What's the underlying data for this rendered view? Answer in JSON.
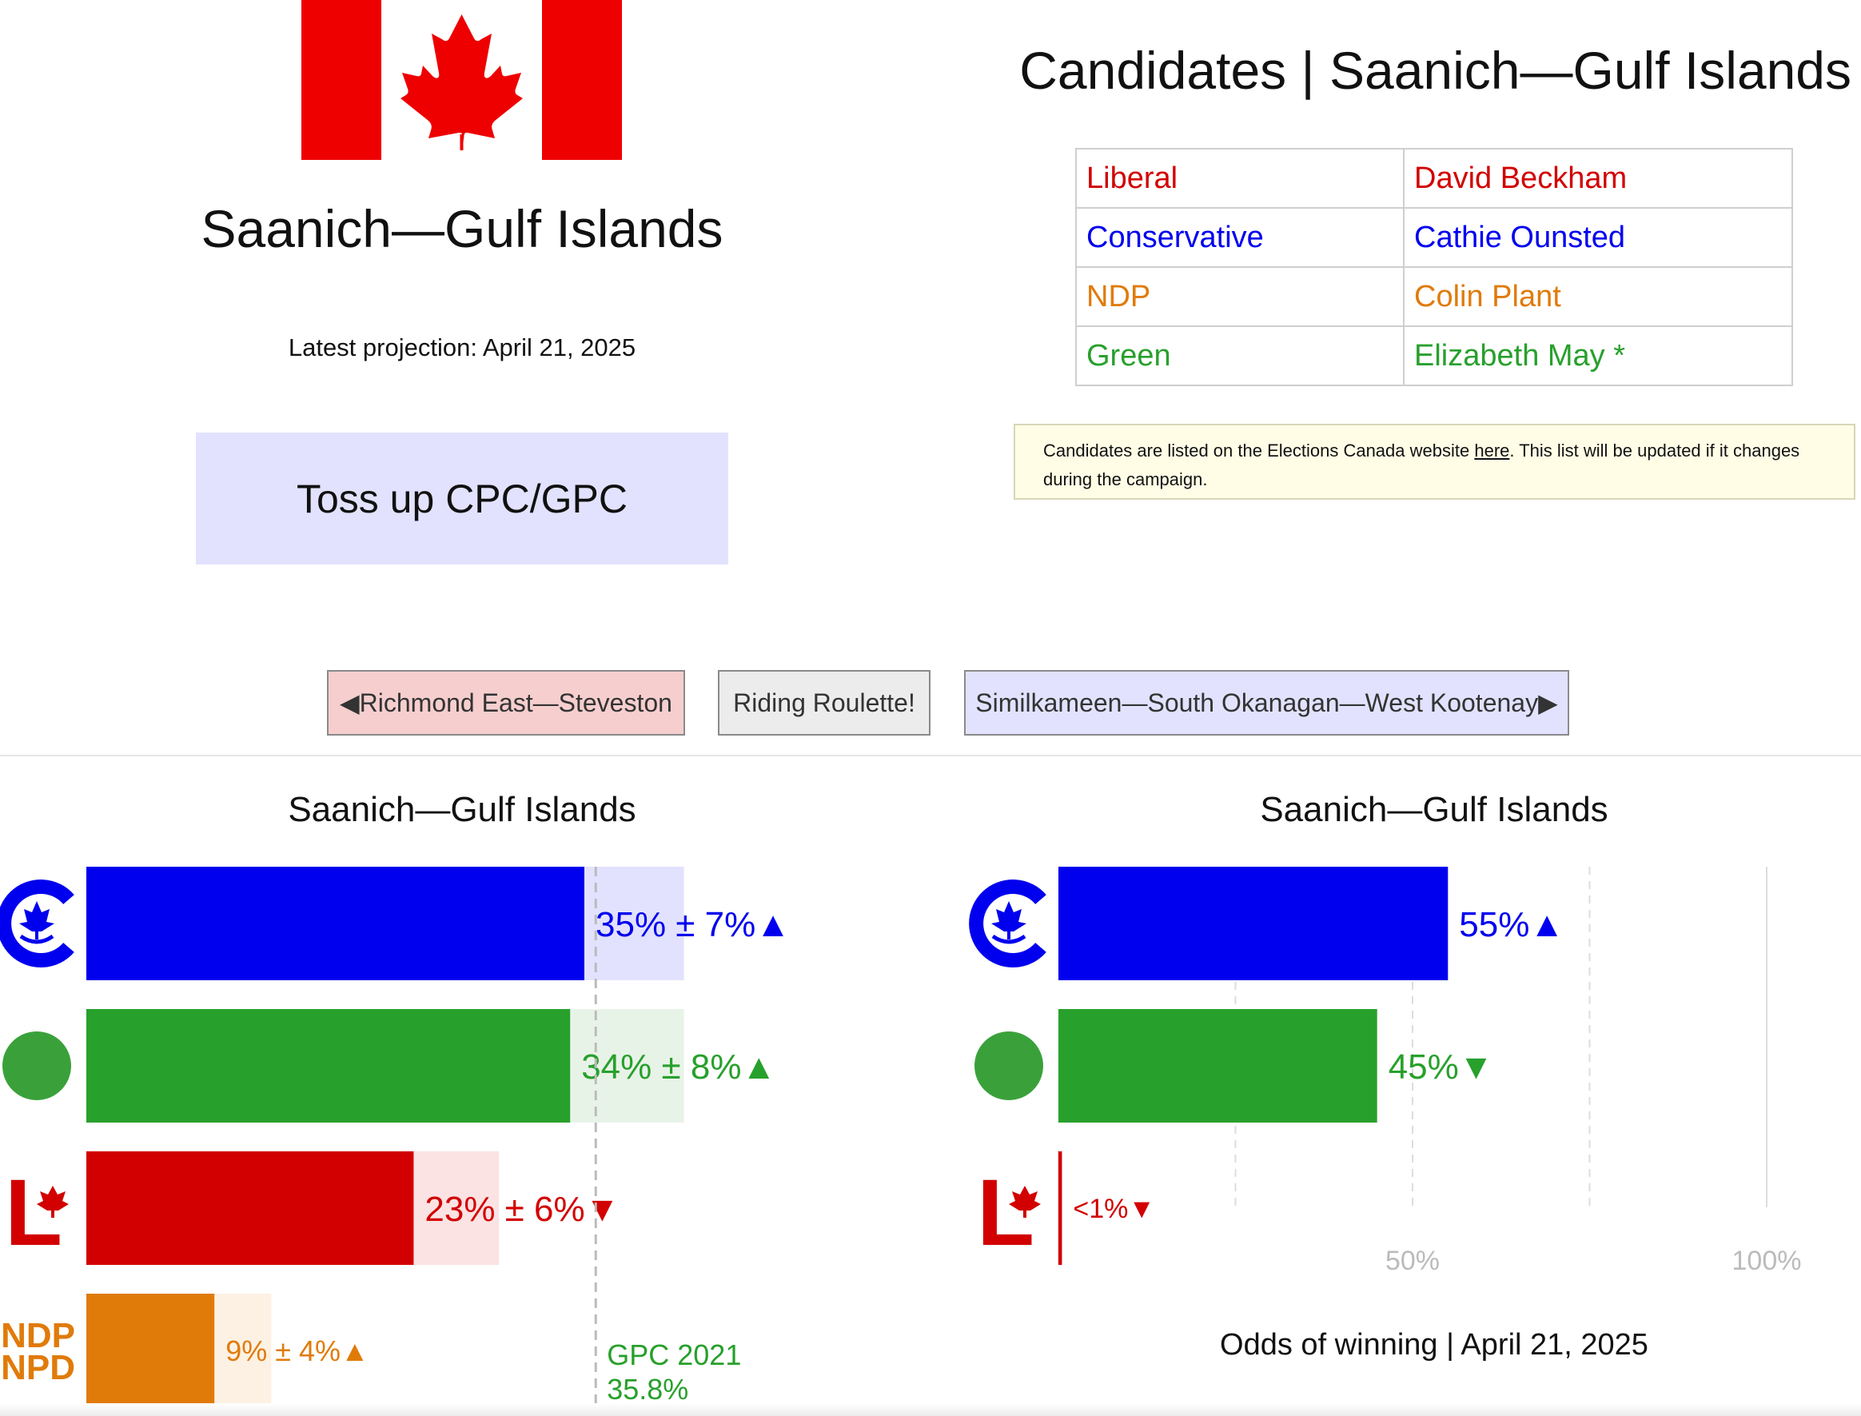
{
  "header": {
    "riding": "Saanich—Gulf Islands",
    "projection_date": "Latest projection: April 21, 2025",
    "status": "Toss up CPC/GPC",
    "flag_icon": "canada-flag-icon"
  },
  "candidates": {
    "title": "Candidates | Saanich—Gulf Islands",
    "rows": [
      {
        "party": "Liberal",
        "name": "David Beckham",
        "color": "#d20000"
      },
      {
        "party": "Conservative",
        "name": "Cathie Ounsted",
        "color": "#0000ee"
      },
      {
        "party": "NDP",
        "name": "Colin Plant",
        "color": "#e07b0a"
      },
      {
        "party": "Green",
        "name": "Elizabeth May *",
        "color": "#28a02c"
      }
    ],
    "note_before": "Candidates are listed on the Elections Canada website ",
    "note_link": "here",
    "note_after": ". This list will be updated if it changes during the campaign."
  },
  "nav": {
    "prev": "◀Richmond East—Steveston",
    "roulette": "Riding Roulette!",
    "next": "Similkameen—South Okanagan—West Kootenay▶"
  },
  "chart_data": [
    {
      "type": "bar",
      "title": "Saanich—Gulf Islands",
      "categories": [
        "CPC",
        "GPC",
        "LPC",
        "NDP"
      ],
      "values": [
        35,
        34,
        23,
        9
      ],
      "margins": [
        7,
        8,
        6,
        4
      ],
      "labels": [
        "35% ± 7%",
        "34% ± 8%",
        "23% ± 6%",
        "9% ± 4%"
      ],
      "trends": [
        "▲",
        "▲",
        "▼",
        "▲"
      ],
      "colors": [
        "#0000ee",
        "#28a02c",
        "#d20000",
        "#e07b0a"
      ],
      "light_colors": [
        "#e2e2ff",
        "#e8f3e8",
        "#fbe3e3",
        "#fdf1e4"
      ],
      "icons": [
        "conservative-logo-icon",
        "green-logo-icon",
        "liberal-logo-icon",
        "ndp-logo-icon"
      ],
      "ndp_logo_text": [
        "NDP",
        "NPD"
      ],
      "reference": {
        "value": 35.8,
        "label_line1": "GPC 2021",
        "label_line2": "35.8%",
        "color": "#28a02c"
      },
      "xlim": [
        0,
        50
      ]
    },
    {
      "type": "bar",
      "title": "Saanich—Gulf Islands",
      "categories": [
        "CPC",
        "GPC",
        "LPC"
      ],
      "values": [
        55,
        45,
        0.5
      ],
      "labels": [
        "55%",
        "45%",
        "<1%"
      ],
      "trends": [
        "▲",
        "▼",
        "▼"
      ],
      "colors": [
        "#0000ee",
        "#28a02c",
        "#d20000"
      ],
      "icons": [
        "conservative-logo-icon",
        "green-logo-icon",
        "liberal-logo-icon"
      ],
      "tick_labels": [
        "50%",
        "100%"
      ],
      "xlabel": "Odds of winning | April 21, 2025",
      "xlim": [
        0,
        100
      ]
    }
  ]
}
